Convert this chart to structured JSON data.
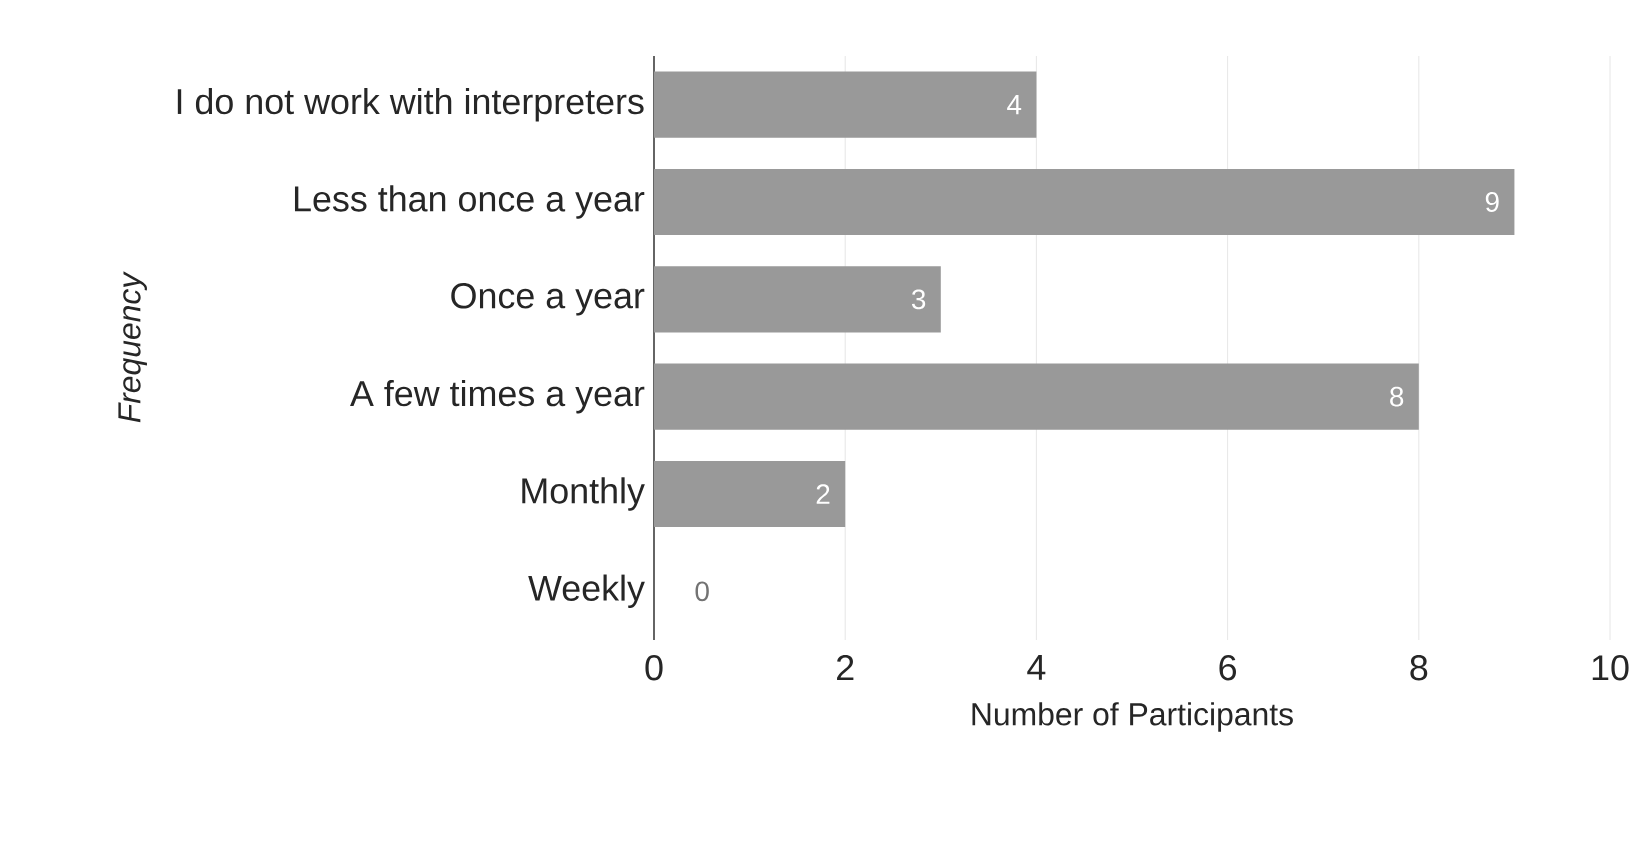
{
  "chart_data": {
    "type": "bar",
    "orientation": "horizontal",
    "xlabel": "Number of Participants",
    "ylabel": "Frequency",
    "categories": [
      "I do not work with interpreters",
      "Less than once a year",
      "Once a year",
      "A few times a year",
      "Monthly",
      "Weekly"
    ],
    "values": [
      4,
      9,
      3,
      8,
      2,
      0
    ],
    "color": "#999999",
    "xlim": [
      0,
      10
    ],
    "xticks": [
      0,
      2,
      4,
      6,
      8,
      10
    ],
    "grid": "x",
    "data_labels": true
  }
}
